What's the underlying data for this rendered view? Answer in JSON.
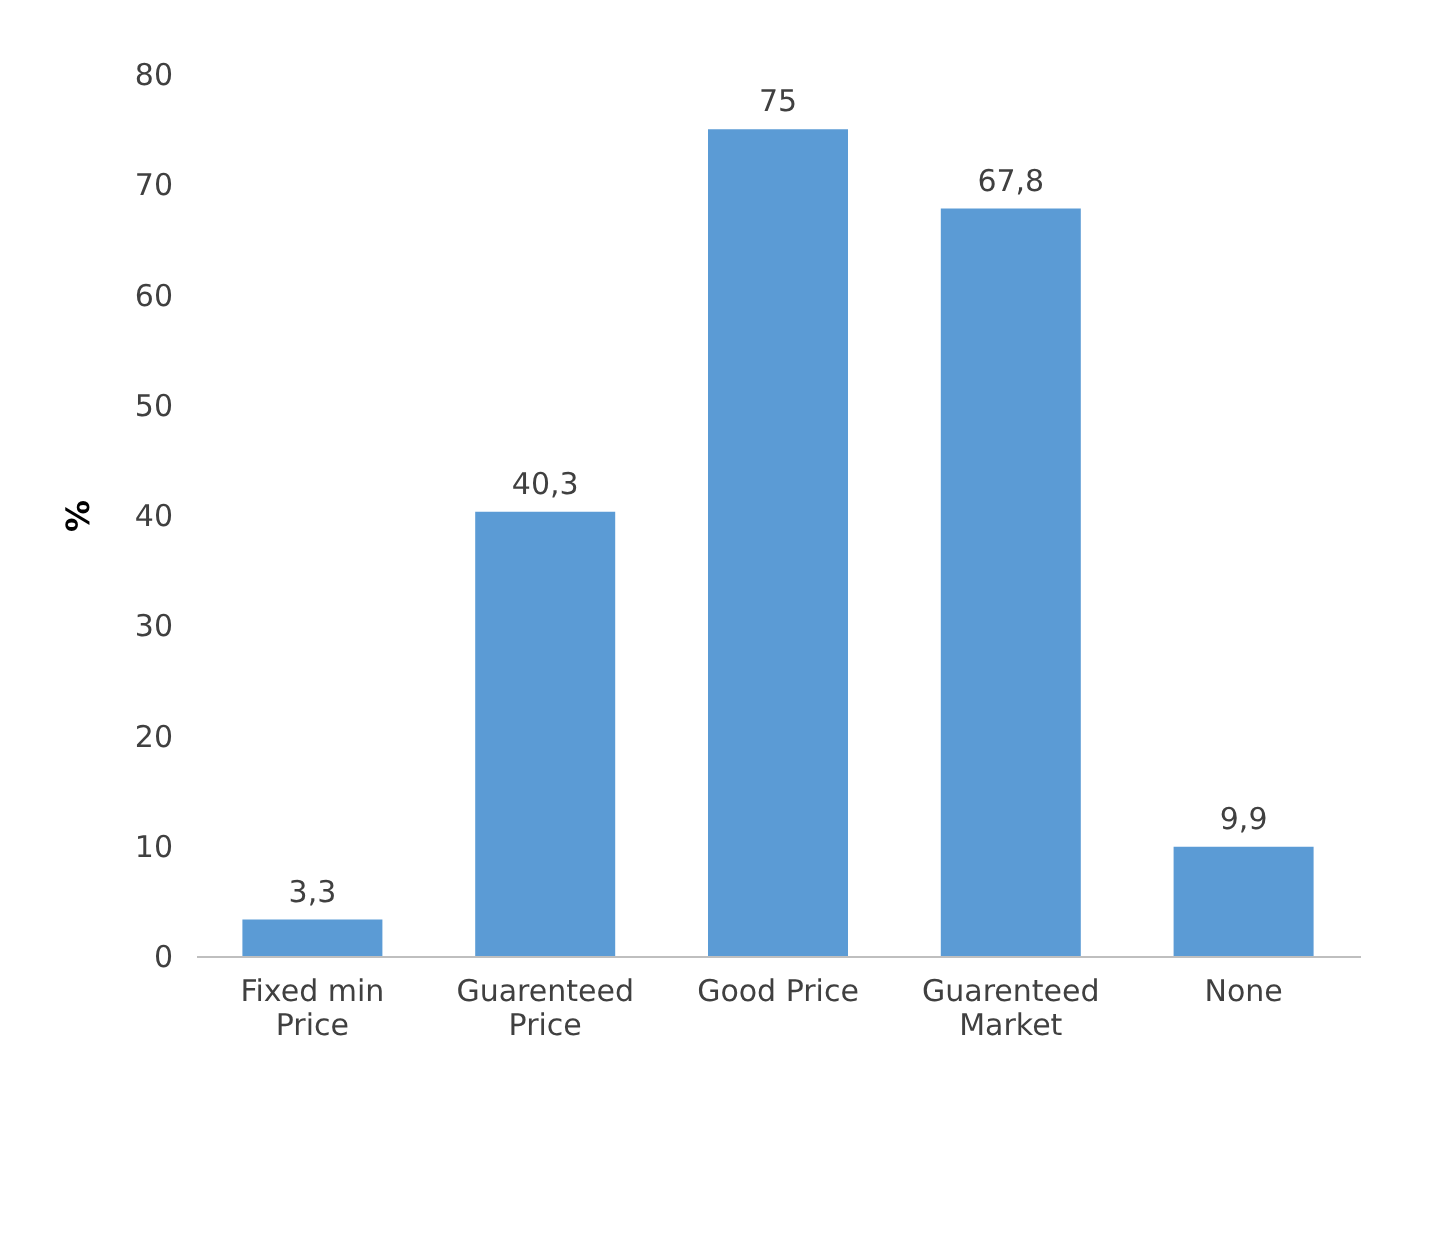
{
  "chart_data": {
    "type": "bar",
    "ylabel": "%",
    "categories": [
      "Fixed min Price",
      "Guarenteed Price",
      "Good Price",
      "Guarenteed Market",
      "None"
    ],
    "values": [
      3.3,
      40.3,
      75,
      67.8,
      9.9
    ],
    "value_labels": [
      "3,3",
      "40,3",
      "75",
      "67,8",
      "9,9"
    ],
    "color": "#5b9bd5",
    "ylim": [
      0,
      80
    ],
    "yticks": [
      0,
      10,
      20,
      30,
      40,
      50,
      60,
      70,
      80
    ],
    "grid": false
  }
}
